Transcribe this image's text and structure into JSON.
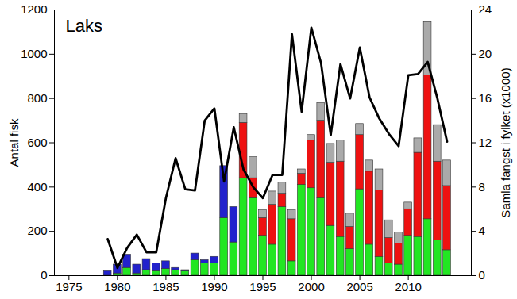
{
  "chart_data": {
    "type": "bar",
    "stacked": true,
    "annotations": [
      "Laks"
    ],
    "y_label": "Antal fisk",
    "y2_label": "Samla fangst i fylket (x1000)",
    "x": [
      1979,
      1980,
      1981,
      1982,
      1983,
      1984,
      1985,
      1986,
      1987,
      1988,
      1989,
      1990,
      1991,
      1992,
      1993,
      1994,
      1995,
      1996,
      1997,
      1998,
      1999,
      2000,
      2001,
      2002,
      2003,
      2004,
      2005,
      2006,
      2007,
      2008,
      2009,
      2010,
      2011,
      2012,
      2013,
      2014
    ],
    "xlim": [
      1973.5,
      2016.5
    ],
    "xticks": [
      1975,
      1980,
      1985,
      1990,
      1995,
      2000,
      2005,
      2010
    ],
    "ylim": [
      0,
      1200
    ],
    "yticks": [
      0,
      200,
      400,
      600,
      800,
      1000,
      1200
    ],
    "y2lim": [
      0,
      24
    ],
    "y2ticks": [
      0,
      4,
      8,
      12,
      16,
      20,
      24
    ],
    "series": [
      {
        "color": "#22e622",
        "values": [
          0,
          10,
          35,
          10,
          25,
          20,
          30,
          25,
          20,
          70,
          55,
          55,
          260,
          150,
          440,
          350,
          180,
          140,
          310,
          65,
          410,
          395,
          350,
          225,
          175,
          120,
          390,
          140,
          85,
          55,
          50,
          180,
          175,
          255,
          160,
          115
        ]
      },
      {
        "color": "#ee1111",
        "values": [
          0,
          0,
          0,
          0,
          0,
          0,
          0,
          0,
          0,
          0,
          0,
          0,
          0,
          0,
          250,
          90,
          80,
          180,
          60,
          190,
          50,
          215,
          350,
          285,
          340,
          100,
          245,
          330,
          300,
          115,
          95,
          120,
          380,
          650,
          355,
          290
        ]
      },
      {
        "color": "#aaaaaa",
        "values": [
          0,
          0,
          0,
          0,
          0,
          0,
          0,
          0,
          0,
          0,
          0,
          0,
          0,
          0,
          40,
          95,
          35,
          60,
          50,
          40,
          20,
          25,
          80,
          85,
          95,
          60,
          50,
          50,
          95,
          80,
          50,
          30,
          65,
          240,
          165,
          115
        ]
      },
      {
        "color": "#2222cc",
        "values": [
          20,
          40,
          60,
          40,
          50,
          35,
          35,
          10,
          5,
          30,
          15,
          30,
          235,
          160,
          0,
          0,
          0,
          0,
          0,
          0,
          0,
          0,
          0,
          0,
          0,
          0,
          0,
          0,
          0,
          0,
          0,
          0,
          0,
          0,
          0,
          0
        ]
      },
      {
        "type": "line",
        "axis": "y2",
        "color": "#000000",
        "values": [
          3.3,
          0.7,
          2.5,
          3.7,
          2.1,
          2.1,
          7.0,
          10.6,
          7.8,
          7.7,
          14.0,
          15.1,
          8.5,
          13.4,
          9.6,
          8.0,
          7.0,
          9.1,
          9.1,
          21.8,
          14.8,
          22.4,
          19.2,
          12.7,
          19.1,
          16.0,
          20.6,
          16.1,
          14.2,
          12.8,
          11.7,
          18.1,
          18.2,
          19.3,
          16.0,
          12.1
        ]
      }
    ]
  }
}
